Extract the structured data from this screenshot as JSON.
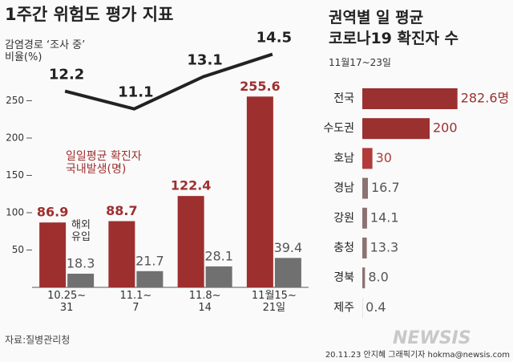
{
  "chart_data": [
    {
      "type": "bar",
      "title": "1주간 위험도 평가 지표",
      "categories": [
        "10.25~\n31",
        "11.1~\n7",
        "11.8~\n14",
        "11월15~\n21일"
      ],
      "series": [
        {
          "name": "일일평균 확진자\n국내발생(명)",
          "color": "#9e2f2f",
          "values": [
            86.9,
            88.7,
            122.4,
            255.6
          ]
        },
        {
          "name": "해외\n유입",
          "color": "#707070",
          "values": [
            18.3,
            21.7,
            28.1,
            39.4
          ]
        },
        {
          "name": "감염경로 ‘조사 중’\n비율(%)",
          "type": "line",
          "axis": "y2",
          "color": "#222222",
          "values": [
            12.2,
            11.1,
            13.1,
            14.5
          ]
        }
      ],
      "ylim": [
        0,
        280
      ],
      "yticks": [
        50,
        100,
        150,
        200,
        250
      ],
      "y2lim": [
        0,
        13
      ]
    },
    {
      "type": "hbar",
      "title": "권역별 일 평균\n코로나19 확진자 수",
      "subtitle": "11월17~23일",
      "categories": [
        "전국",
        "수도권",
        "호남",
        "경남",
        "강원",
        "충청",
        "경북",
        "제주"
      ],
      "values": [
        282.6,
        200,
        30,
        16.7,
        14.1,
        13.3,
        8.0,
        0.4
      ],
      "value_labels": [
        "282.6명",
        "200",
        "30",
        "16.7",
        "14.1",
        "13.3",
        "8.0",
        "0.4"
      ],
      "colors": [
        "#9b3030",
        "#9b3030",
        "#b23a3a",
        "#8c7272",
        "#8c7272",
        "#8c7272",
        "#8c7272",
        "#8c7272"
      ],
      "xlim": [
        0,
        300
      ]
    }
  ],
  "source": "자료:질병관리청",
  "credit": "20.11.23 안지혜 그래픽기자 hokma@newsis.com",
  "watermark": "NEWSIS"
}
